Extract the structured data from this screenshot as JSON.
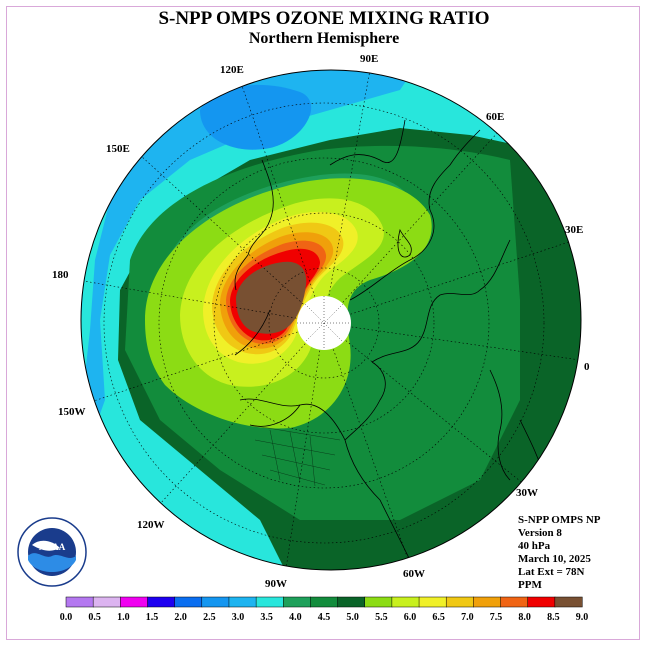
{
  "title": "S-NPP OMPS OZONE MIXING RATIO",
  "subtitle": "Northern Hemisphere",
  "longitude_labels": {
    "lon_90e": "90E",
    "lon_60e": "60E",
    "lon_30e": "30E",
    "lon_0": "0",
    "lon_30w": "30W",
    "lon_60w": "60W",
    "lon_90w": "90W",
    "lon_120w": "120W",
    "lon_150w": "150W",
    "lon_180": "180",
    "lon_150e": "150E",
    "lon_120e": "120E"
  },
  "info": {
    "product": "S-NPP OMPS NP",
    "version": "Version 8",
    "level": "40 hPa",
    "date": "March 10, 2025",
    "lat_ext": "Lat Ext = 78N",
    "units": "PPM"
  },
  "colorbar": {
    "ticks": [
      "0.0",
      "0.5",
      "1.0",
      "1.5",
      "2.0",
      "2.5",
      "3.0",
      "3.5",
      "4.0",
      "4.5",
      "5.0",
      "5.5",
      "6.0",
      "6.5",
      "7.0",
      "7.5",
      "8.0",
      "8.5",
      "9.0"
    ],
    "colors": [
      "#b478f0",
      "#dcb4f0",
      "#f000f0",
      "#1e00f0",
      "#0a6ef0",
      "#1496f0",
      "#1eb4f0",
      "#28e6dc",
      "#1ea05a",
      "#128c3c",
      "#0a6428",
      "#8cdc14",
      "#c8f01e",
      "#f0f028",
      "#f0c814",
      "#f0a00a",
      "#f06414",
      "#f00000",
      "#785032"
    ]
  },
  "logo": {
    "text": "NOAA",
    "ring_text": "NATIONAL OCEANIC AND ATMOSPHERIC ADMINISTRATION · U.S. DEPARTMENT OF COMMERCE"
  }
}
